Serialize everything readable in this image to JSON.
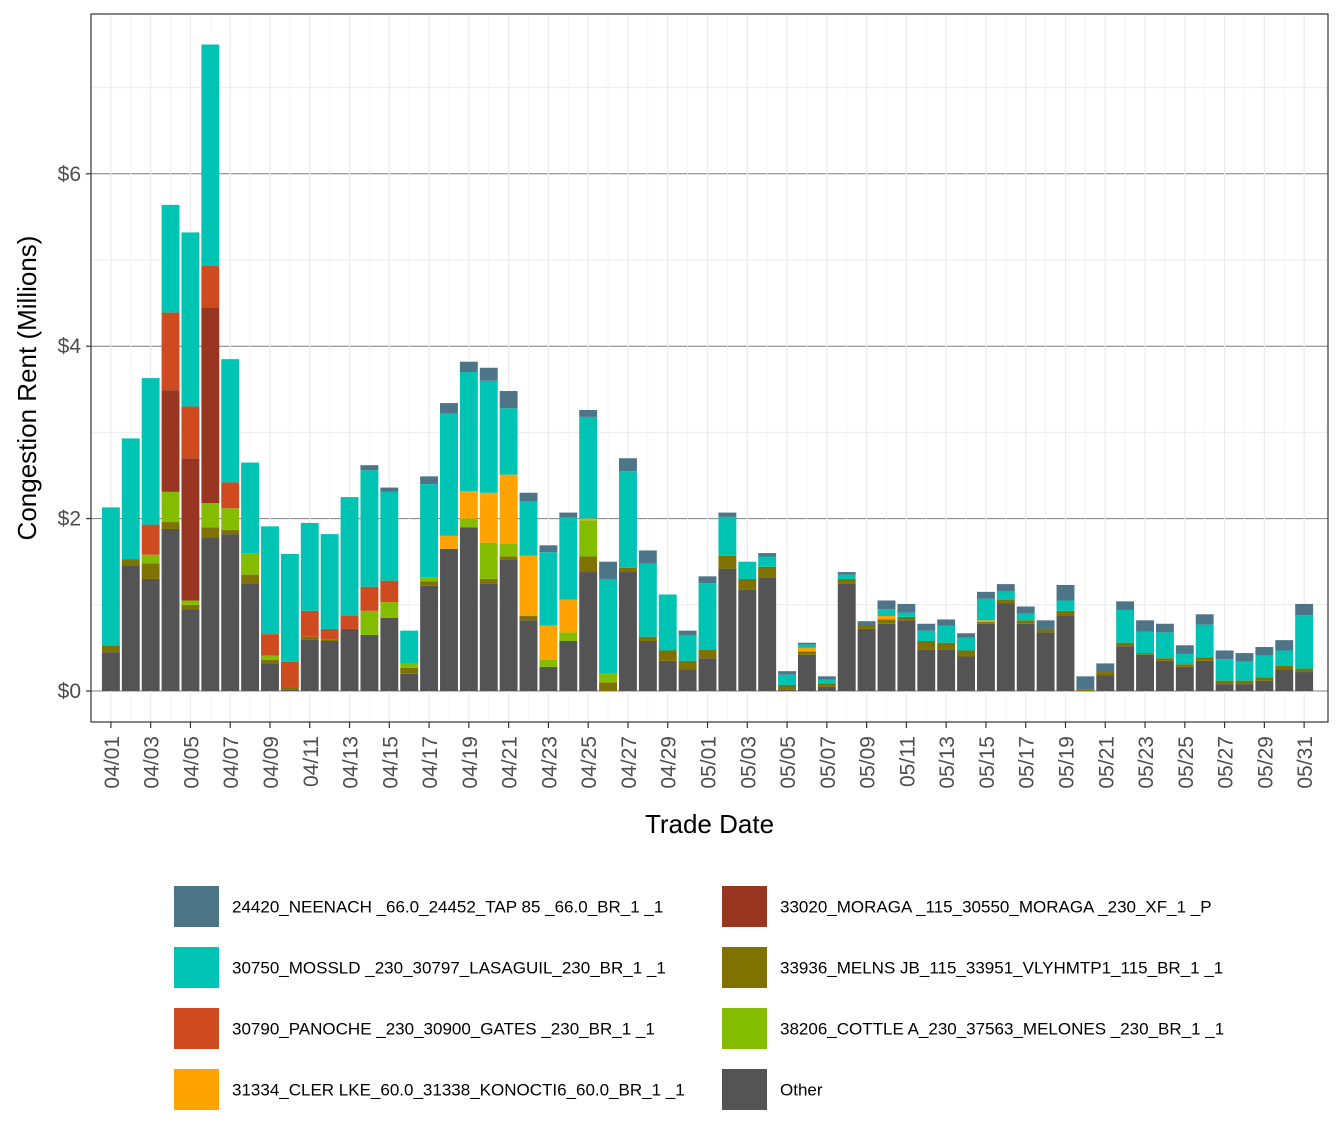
{
  "chart_data": {
    "type": "bar",
    "stacked": true,
    "xlabel": "Trade Date",
    "ylabel": "Congestion Rent (Millions)",
    "ylim": [
      0,
      7.8
    ],
    "y_ticks": [
      0,
      2,
      4,
      6
    ],
    "y_tick_labels": [
      "$0",
      "$2",
      "$4",
      "$6"
    ],
    "grid": true,
    "legend_position": "bottom",
    "categories": [
      "04/01",
      "04/02",
      "04/03",
      "04/04",
      "04/05",
      "04/06",
      "04/07",
      "04/08",
      "04/09",
      "04/10",
      "04/11",
      "04/12",
      "04/13",
      "04/14",
      "04/15",
      "04/16",
      "04/17",
      "04/18",
      "04/19",
      "04/20",
      "04/21",
      "04/22",
      "04/23",
      "04/24",
      "04/25",
      "04/26",
      "04/27",
      "04/28",
      "04/29",
      "04/30",
      "05/01",
      "05/02",
      "05/03",
      "05/04",
      "05/05",
      "05/06",
      "05/07",
      "05/08",
      "05/09",
      "05/10",
      "05/11",
      "05/12",
      "05/13",
      "05/14",
      "05/15",
      "05/16",
      "05/17",
      "05/18",
      "05/19",
      "05/20",
      "05/21",
      "05/22",
      "05/23",
      "05/24",
      "05/25",
      "05/26",
      "05/27",
      "05/28",
      "05/29",
      "05/30",
      "05/31"
    ],
    "x_tick_labels": [
      "04/01",
      "04/03",
      "04/05",
      "04/07",
      "04/09",
      "04/11",
      "04/13",
      "04/15",
      "04/17",
      "04/19",
      "04/21",
      "04/23",
      "04/25",
      "04/27",
      "04/29",
      "05/01",
      "05/03",
      "05/05",
      "05/07",
      "05/09",
      "05/11",
      "05/13",
      "05/15",
      "05/17",
      "05/19",
      "05/21",
      "05/23",
      "05/25",
      "05/27",
      "05/29",
      "05/31"
    ],
    "series": [
      {
        "name": "Other",
        "color": "#545454",
        "values": [
          0.45,
          1.45,
          1.3,
          1.88,
          0.95,
          1.78,
          1.82,
          1.25,
          0.32,
          0.02,
          0.6,
          0.58,
          0.72,
          0.65,
          0.85,
          0.2,
          1.22,
          1.65,
          1.9,
          1.25,
          1.52,
          0.82,
          0.28,
          0.58,
          1.38,
          0.0,
          1.38,
          0.58,
          0.35,
          0.25,
          0.38,
          1.42,
          1.18,
          1.32,
          0.02,
          0.42,
          0.05,
          1.25,
          0.72,
          0.78,
          0.82,
          0.48,
          0.48,
          0.4,
          0.78,
          1.02,
          0.78,
          0.68,
          0.88,
          0.0,
          0.18,
          0.52,
          0.42,
          0.35,
          0.28,
          0.35,
          0.08,
          0.08,
          0.12,
          0.25,
          0.22
        ]
      },
      {
        "name": "33936_MELNS JB_115_33951_VLYHMTP1_115_BR_1 _1",
        "color": "#7f7200",
        "values": [
          0.08,
          0.08,
          0.18,
          0.08,
          0.05,
          0.12,
          0.05,
          0.1,
          0.04,
          0.02,
          0.03,
          0.02,
          0.0,
          0.0,
          0.0,
          0.07,
          0.05,
          0.0,
          0.0,
          0.05,
          0.04,
          0.05,
          0.0,
          0.0,
          0.18,
          0.1,
          0.05,
          0.05,
          0.12,
          0.1,
          0.1,
          0.15,
          0.12,
          0.12,
          0.05,
          0.04,
          0.04,
          0.05,
          0.04,
          0.05,
          0.04,
          0.1,
          0.08,
          0.07,
          0.02,
          0.04,
          0.04,
          0.04,
          0.05,
          0.02,
          0.04,
          0.04,
          0.02,
          0.03,
          0.03,
          0.04,
          0.04,
          0.04,
          0.04,
          0.04,
          0.04
        ]
      },
      {
        "name": "38206_COTTLE A_230_37563_MELONES _230_BR_1 _1",
        "color": "#84bd00",
        "values": [
          0.0,
          0.0,
          0.1,
          0.35,
          0.05,
          0.28,
          0.25,
          0.25,
          0.05,
          0.0,
          0.0,
          0.0,
          0.0,
          0.28,
          0.18,
          0.05,
          0.05,
          0.0,
          0.1,
          0.42,
          0.15,
          0.0,
          0.08,
          0.1,
          0.42,
          0.1,
          0.0,
          0.0,
          0.0,
          0.0,
          0.0,
          0.0,
          0.0,
          0.0,
          0.0,
          0.0,
          0.0,
          0.0,
          0.0,
          0.0,
          0.0,
          0.0,
          0.0,
          0.0,
          0.0,
          0.0,
          0.0,
          0.0,
          0.0,
          0.0,
          0.0,
          0.0,
          0.0,
          0.0,
          0.0,
          0.0,
          0.0,
          0.0,
          0.0,
          0.0,
          0.0
        ]
      },
      {
        "name": "31334_CLER LKE_60.0_31338_KONOCTI6_60.0_BR_1 _1",
        "color": "#ffa300",
        "values": [
          0.0,
          0.0,
          0.0,
          0.0,
          0.0,
          0.0,
          0.0,
          0.0,
          0.0,
          0.0,
          0.0,
          0.0,
          0.0,
          0.0,
          0.0,
          0.0,
          0.0,
          0.15,
          0.32,
          0.58,
          0.8,
          0.7,
          0.4,
          0.38,
          0.02,
          0.0,
          0.0,
          0.0,
          0.0,
          0.0,
          0.0,
          0.0,
          0.0,
          0.0,
          0.0,
          0.04,
          0.0,
          0.0,
          0.0,
          0.04,
          0.0,
          0.0,
          0.0,
          0.0,
          0.02,
          0.0,
          0.0,
          0.0,
          0.0,
          0.0,
          0.0,
          0.0,
          0.0,
          0.0,
          0.0,
          0.0,
          0.0,
          0.0,
          0.0,
          0.0,
          0.0
        ]
      },
      {
        "name": "33020_MORAGA _115_30550_MORAGA _230_XF_1 _P",
        "color": "#993622",
        "values": [
          0.0,
          0.0,
          0.0,
          1.18,
          1.65,
          2.27,
          0.0,
          0.0,
          0.0,
          0.0,
          0.0,
          0.0,
          0.0,
          0.0,
          0.0,
          0.0,
          0.0,
          0.0,
          0.0,
          0.0,
          0.0,
          0.0,
          0.0,
          0.0,
          0.0,
          0.0,
          0.0,
          0.0,
          0.0,
          0.0,
          0.0,
          0.0,
          0.0,
          0.0,
          0.0,
          0.0,
          0.0,
          0.0,
          0.0,
          0.0,
          0.0,
          0.0,
          0.0,
          0.0,
          0.0,
          0.0,
          0.0,
          0.0,
          0.0,
          0.0,
          0.0,
          0.0,
          0.0,
          0.0,
          0.0,
          0.0,
          0.0,
          0.0,
          0.0,
          0.0,
          0.0
        ]
      },
      {
        "name": "30790_PANOCHE _230_30900_GATES _230_BR_1 _1",
        "color": "#d04a20",
        "values": [
          0.0,
          0.0,
          0.35,
          0.9,
          0.6,
          0.48,
          0.3,
          0.0,
          0.25,
          0.3,
          0.3,
          0.12,
          0.15,
          0.28,
          0.25,
          0.0,
          0.0,
          0.0,
          0.0,
          0.0,
          0.0,
          0.0,
          0.0,
          0.0,
          0.0,
          0.0,
          0.0,
          0.0,
          0.0,
          0.0,
          0.0,
          0.0,
          0.0,
          0.0,
          0.0,
          0.0,
          0.0,
          0.0,
          0.0,
          0.0,
          0.0,
          0.0,
          0.0,
          0.0,
          0.0,
          0.0,
          0.0,
          0.0,
          0.0,
          0.0,
          0.0,
          0.0,
          0.0,
          0.0,
          0.0,
          0.0,
          0.0,
          0.0,
          0.0,
          0.0,
          0.0
        ]
      },
      {
        "name": "30750_MOSSLD _230_30797_LASAGUIL_230_BR_1 _1",
        "color": "#00c4b3",
        "values": [
          1.6,
          1.4,
          1.7,
          1.25,
          2.02,
          2.57,
          1.43,
          1.05,
          1.25,
          1.25,
          1.02,
          1.1,
          1.38,
          1.35,
          1.03,
          0.38,
          1.08,
          1.42,
          1.38,
          1.3,
          0.77,
          0.63,
          0.85,
          0.95,
          1.18,
          1.1,
          1.12,
          0.85,
          0.65,
          0.3,
          0.77,
          0.45,
          0.2,
          0.12,
          0.12,
          0.04,
          0.04,
          0.05,
          0.0,
          0.08,
          0.05,
          0.12,
          0.2,
          0.15,
          0.25,
          0.1,
          0.08,
          0.0,
          0.12,
          0.0,
          0.0,
          0.38,
          0.25,
          0.3,
          0.12,
          0.38,
          0.25,
          0.22,
          0.25,
          0.18,
          0.62
        ]
      },
      {
        "name": "24420_NEENACH _66.0_24452_TAP 85 _66.0_BR_1 _1",
        "color": "#4e7487",
        "values": [
          0.0,
          0.0,
          0.0,
          0.0,
          0.0,
          0.0,
          0.0,
          0.0,
          0.0,
          0.0,
          0.0,
          0.0,
          0.0,
          0.06,
          0.05,
          0.0,
          0.09,
          0.12,
          0.12,
          0.15,
          0.2,
          0.1,
          0.08,
          0.06,
          0.08,
          0.2,
          0.15,
          0.15,
          0.0,
          0.05,
          0.08,
          0.05,
          0.0,
          0.04,
          0.04,
          0.02,
          0.04,
          0.03,
          0.05,
          0.1,
          0.1,
          0.08,
          0.07,
          0.05,
          0.08,
          0.08,
          0.08,
          0.1,
          0.18,
          0.15,
          0.1,
          0.1,
          0.13,
          0.1,
          0.1,
          0.12,
          0.1,
          0.1,
          0.1,
          0.12,
          0.13
        ]
      }
    ],
    "legend_order": [
      "24420_NEENACH _66.0_24452_TAP 85 _66.0_BR_1 _1",
      "30750_MOSSLD _230_30797_LASAGUIL_230_BR_1 _1",
      "30790_PANOCHE _230_30900_GATES _230_BR_1 _1",
      "31334_CLER LKE_60.0_31338_KONOCTI6_60.0_BR_1 _1",
      "33020_MORAGA _115_30550_MORAGA _230_XF_1 _P",
      "33936_MELNS JB_115_33951_VLYHMTP1_115_BR_1 _1",
      "38206_COTTLE A_230_37563_MELONES _230_BR_1 _1",
      "Other"
    ]
  }
}
